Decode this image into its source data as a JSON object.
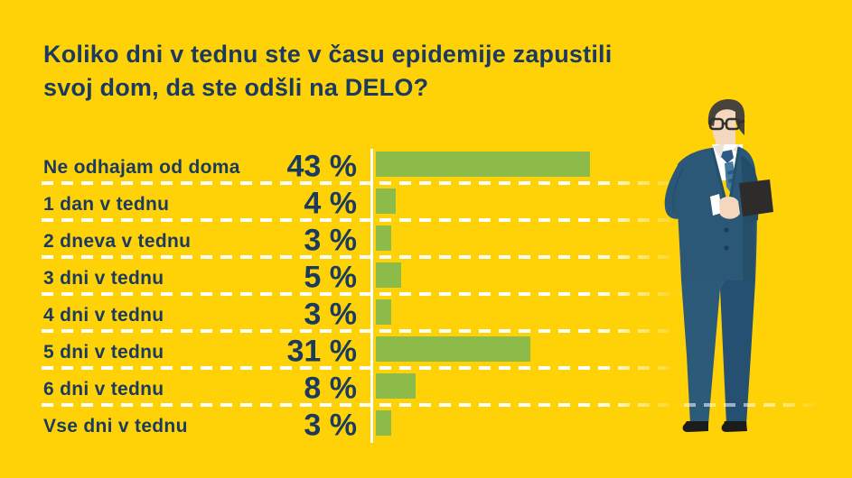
{
  "page": {
    "background_color": "#FFD208",
    "accent_green": "#8DBB49",
    "text_navy": "#1B3A5F",
    "line_white": "#FFFFFF"
  },
  "title": {
    "text": "Koliko dni v tednu ste v času epidemije zapustili\nsvoj dom, da ste odšli na DELO?"
  },
  "chart_data": {
    "type": "bar",
    "orientation": "horizontal",
    "title": "Koliko dni v tednu ste v času epidemije zapustili svoj dom, da ste odšli na DELO?",
    "categories": [
      "Ne odhajam od doma",
      "1 dan v tednu",
      "2 dneva v tednu",
      "3 dni v tednu",
      "4 dni v tednu",
      "5 dni v tednu",
      "6 dni v tednu",
      "Vse dni v tednu"
    ],
    "values": [
      43,
      4,
      3,
      5,
      3,
      31,
      8,
      3
    ],
    "value_labels": [
      "43 %",
      "4 %",
      "3 %",
      "5 %",
      "3 %",
      "31 %",
      "8 %",
      "3 %"
    ],
    "unit": "%",
    "xlim": [
      0,
      43
    ],
    "bar_color": "#8DBB49",
    "label_color": "#1B3A5F",
    "grid": "white dashed horizontal separators between rows",
    "legend": null
  },
  "illustration": {
    "description": "businessman in dark blue suit with glasses holding a black tablet",
    "position": "right"
  }
}
